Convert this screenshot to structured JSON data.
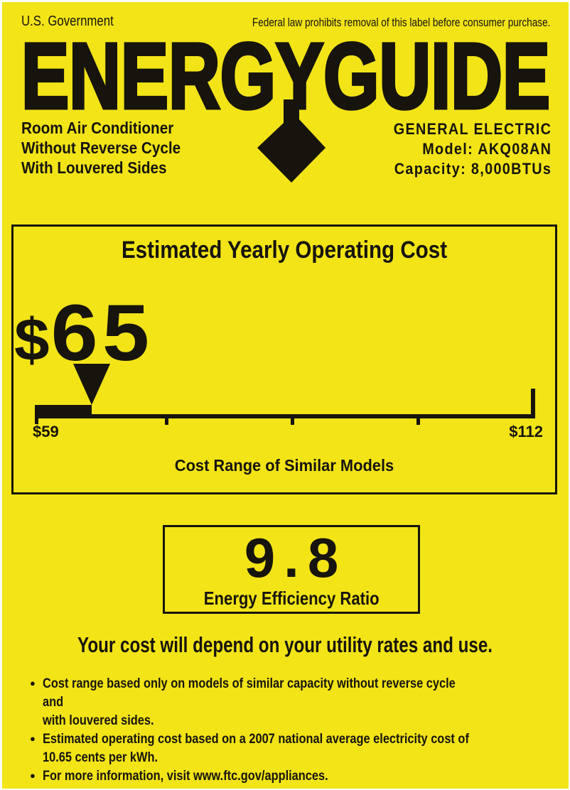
{
  "header": {
    "government": "U.S. Government",
    "federal_notice": "Federal law prohibits removal of this label before consumer purchase.",
    "logo": "ENERGYGUIDE"
  },
  "product": {
    "type_line1": "Room Air Conditioner",
    "type_line2": "Without Reverse Cycle",
    "type_line3": "With Louvered Sides",
    "manufacturer": "GENERAL ELECTRIC",
    "model": "Model: AKQ08AN",
    "capacity": "Capacity: 8,000BTUs"
  },
  "cost_box": {
    "title": "Estimated Yearly Operating Cost",
    "estimated_cost_currency": "$",
    "estimated_cost_value": "65",
    "scale_min_label": "$59",
    "scale_max_label": "$112",
    "caption": "Cost Range of Similar Models"
  },
  "eer_box": {
    "value": "9.8",
    "label": "Energy Efficiency Ratio"
  },
  "footer": {
    "headline": "Your cost will depend on your utility rates and use.",
    "bullets": [
      "Cost range based only on models of similar capacity without reverse cycle and\nwith louvered sides.",
      "Estimated operating cost based on a 2007 national average electricity cost of\n10.65 cents per kWh.",
      "For more information, visit www.ftc.gov/appliances."
    ]
  },
  "colors": {
    "label_yellow": "#f2e417",
    "ink_black": "#17140d"
  },
  "chart_data": {
    "type": "scale",
    "title": "Estimated Yearly Operating Cost",
    "unit": "USD per year",
    "marker_value": 65,
    "min": 59,
    "max": 112,
    "min_label": "$59",
    "max_label": "$112",
    "caption": "Cost Range of Similar Models"
  }
}
